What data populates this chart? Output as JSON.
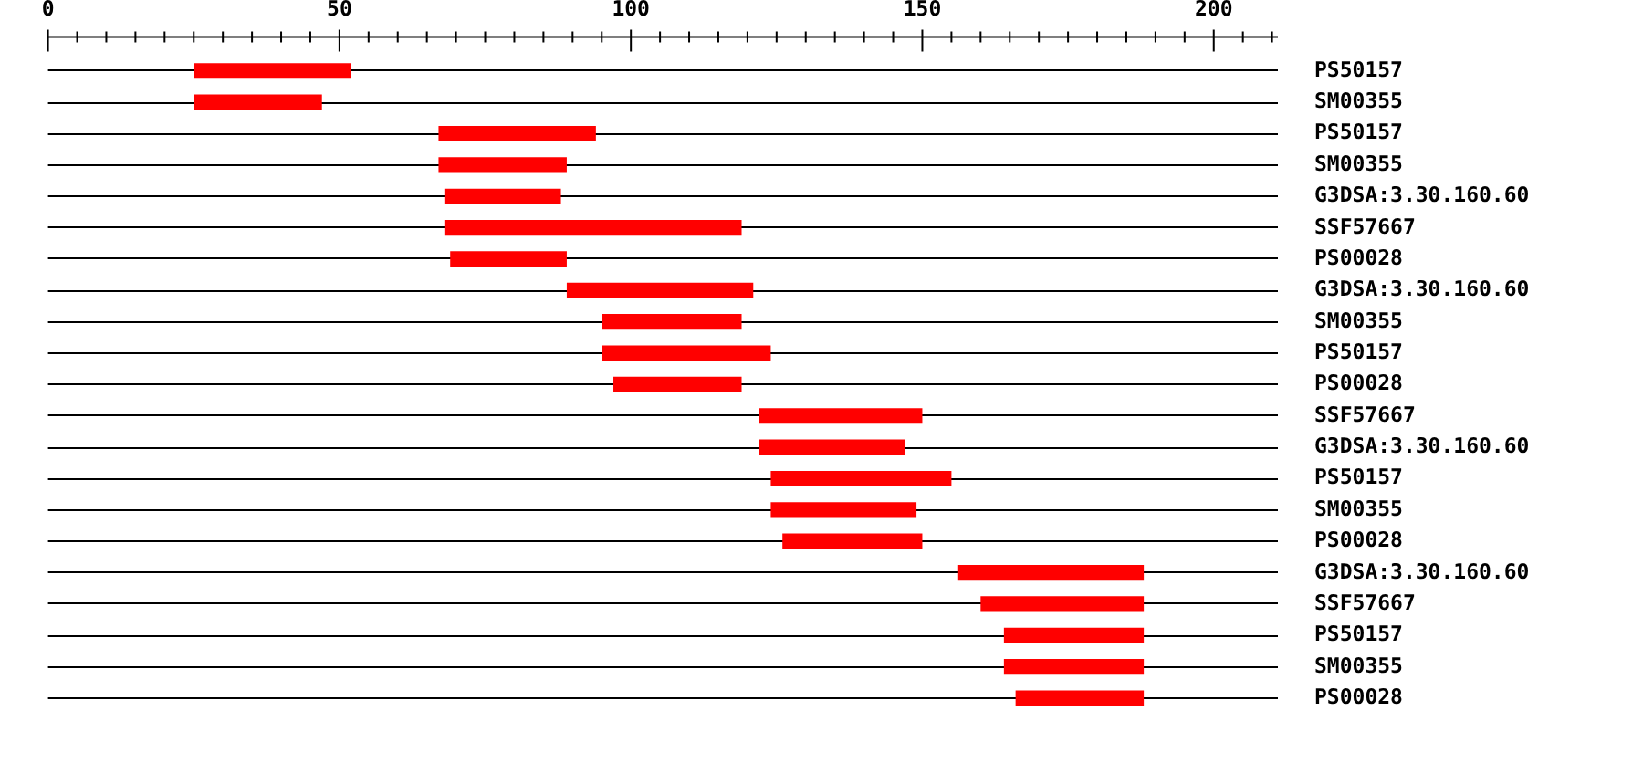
{
  "chart_data": {
    "type": "bar",
    "orientation": "horizontal",
    "categories": [
      "PS50157",
      "SM00355",
      "PS50157",
      "SM00355",
      "G3DSA:3.30.160.60",
      "SSF57667",
      "PS00028",
      "G3DSA:3.30.160.60",
      "SM00355",
      "PS50157",
      "PS00028",
      "SSF57667",
      "G3DSA:3.30.160.60",
      "PS50157",
      "SM00355",
      "PS00028",
      "G3DSA:3.30.160.60",
      "SSF57667",
      "PS50157",
      "SM00355",
      "PS00028"
    ],
    "base": [
      25,
      25,
      67,
      67,
      68,
      68,
      69,
      89,
      95,
      95,
      97,
      122,
      122,
      124,
      124,
      126,
      156,
      160,
      164,
      164,
      166
    ],
    "values": [
      27,
      22,
      27,
      22,
      20,
      51,
      20,
      32,
      24,
      29,
      22,
      28,
      25,
      31,
      25,
      24,
      32,
      28,
      24,
      24,
      22
    ],
    "color": "#ff0000",
    "xlim": [
      0,
      211
    ],
    "xticks": [
      0,
      {
        "value": 5,
        "label": null
      },
      {
        "value": 10,
        "label": null
      },
      {
        "value": 15,
        "label": null
      },
      {
        "value": 20,
        "label": null
      },
      {
        "value": 25,
        "label": null
      },
      {
        "value": 30,
        "label": null
      },
      {
        "value": 35,
        "label": null
      },
      {
        "value": 40,
        "label": null
      },
      {
        "value": 45,
        "label": null
      },
      50,
      {
        "value": 55,
        "label": null
      },
      {
        "value": 60,
        "label": null
      },
      {
        "value": 65,
        "label": null
      },
      {
        "value": 70,
        "label": null
      },
      {
        "value": 75,
        "label": null
      },
      {
        "value": 80,
        "label": null
      },
      {
        "value": 85,
        "label": null
      },
      {
        "value": 90,
        "label": null
      },
      {
        "value": 95,
        "label": null
      },
      100,
      {
        "value": 105,
        "label": null
      },
      {
        "value": 110,
        "label": null
      },
      {
        "value": 115,
        "label": null
      },
      {
        "value": 120,
        "label": null
      },
      {
        "value": 125,
        "label": null
      },
      {
        "value": 130,
        "label": null
      },
      {
        "value": 135,
        "label": null
      },
      {
        "value": 140,
        "label": null
      },
      {
        "value": 145,
        "label": null
      },
      150,
      {
        "value": 155,
        "label": null
      },
      {
        "value": 160,
        "label": null
      },
      {
        "value": 165,
        "label": null
      },
      {
        "value": 170,
        "label": null
      },
      {
        "value": 175,
        "label": null
      },
      {
        "value": 180,
        "label": null
      },
      {
        "value": 185,
        "label": null
      },
      {
        "value": 190,
        "label": null
      },
      {
        "value": 195,
        "label": null
      },
      200,
      {
        "value": 205,
        "label": null
      },
      {
        "value": 210,
        "label": null
      }
    ],
    "grid": "y"
  }
}
